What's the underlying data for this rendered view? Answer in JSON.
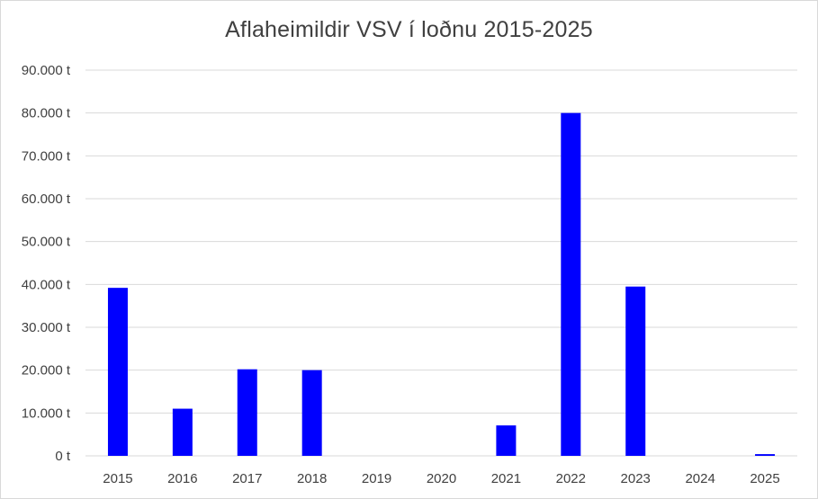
{
  "chart_data": {
    "type": "bar",
    "title": "Aflaheimildir VSV í loðnu 2015-2025",
    "xlabel": "",
    "ylabel": "",
    "categories": [
      "2015",
      "2016",
      "2017",
      "2018",
      "2019",
      "2020",
      "2021",
      "2022",
      "2023",
      "2024",
      "2025"
    ],
    "series": [
      {
        "values": [
          39200,
          11000,
          20200,
          20000,
          0,
          0,
          7100,
          80000,
          39500,
          0,
          400
        ]
      }
    ],
    "ylim": [
      0,
      90000
    ],
    "yticks": [
      0,
      10000,
      20000,
      30000,
      40000,
      50000,
      60000,
      70000,
      80000,
      90000
    ],
    "ytick_labels": [
      "0 t",
      "10.000 t",
      "20.000 t",
      "30.000 t",
      "40.000 t",
      "50.000 t",
      "60.000 t",
      "70.000 t",
      "80.000 t",
      "90.000 t"
    ],
    "grid": true,
    "legend": "none",
    "colors": {
      "bar": "#0000ff",
      "grid": "#d9d9d9",
      "text": "#404040"
    }
  }
}
